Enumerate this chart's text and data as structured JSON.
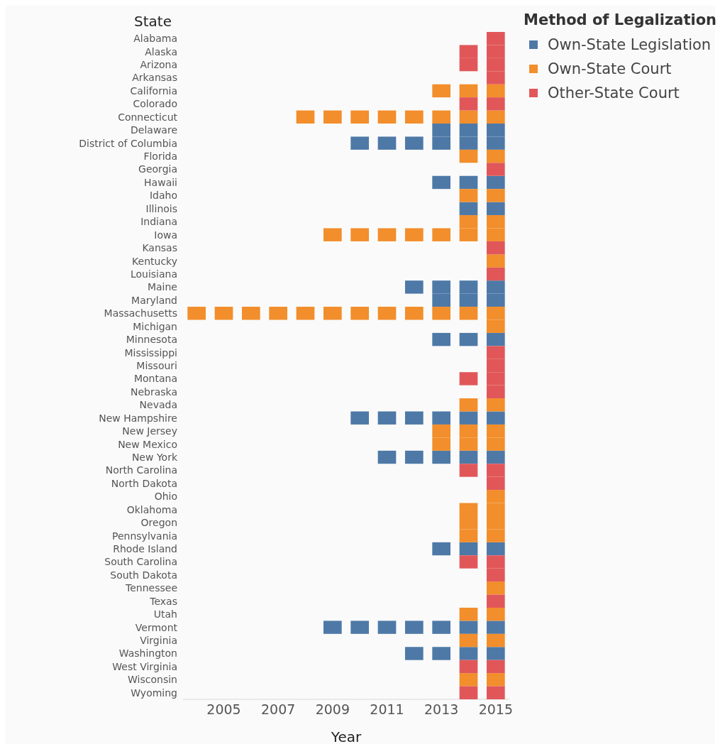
{
  "chart_data": {
    "type": "scatter",
    "orientation": "horizontal",
    "marker": "square",
    "xlabel": "Year",
    "ylabel": "State",
    "legend_title": "Method of Legalization",
    "legend": "top right",
    "grid": false,
    "xlim": [
      2003.5,
      2015.5
    ],
    "xticks": [
      2005,
      2007,
      2009,
      2011,
      2013,
      2015
    ],
    "categories": [
      "Alabama",
      "Alaska",
      "Arizona",
      "Arkansas",
      "California",
      "Colorado",
      "Connecticut",
      "Delaware",
      "District of Columbia",
      "Florida",
      "Georgia",
      "Hawaii",
      "Idaho",
      "Illinois",
      "Indiana",
      "Iowa",
      "Kansas",
      "Kentucky",
      "Louisiana",
      "Maine",
      "Maryland",
      "Massachusetts",
      "Michigan",
      "Minnesota",
      "Mississippi",
      "Missouri",
      "Montana",
      "Nebraska",
      "Nevada",
      "New Hampshire",
      "New Jersey",
      "New Mexico",
      "New York",
      "North Carolina",
      "North Dakota",
      "Ohio",
      "Oklahoma",
      "Oregon",
      "Pennsylvania",
      "Rhode Island",
      "South Carolina",
      "South Dakota",
      "Tennessee",
      "Texas",
      "Utah",
      "Vermont",
      "Virginia",
      "Washington",
      "West Virginia",
      "Wisconsin",
      "Wyoming"
    ],
    "series": [
      {
        "name": "Own-State Legislation",
        "color": "#4e79a7",
        "values": [
          null,
          null,
          null,
          null,
          null,
          null,
          null,
          2015,
          2015,
          null,
          null,
          2015,
          null,
          2015,
          null,
          null,
          null,
          null,
          null,
          2015,
          2015,
          null,
          null,
          2015,
          null,
          null,
          null,
          null,
          null,
          2015,
          null,
          null,
          2015,
          null,
          null,
          null,
          null,
          null,
          null,
          2015,
          null,
          null,
          null,
          null,
          null,
          2015,
          null,
          2015,
          null,
          null,
          null
        ]
      },
      {
        "color": "#4e79a7",
        "values": [
          null,
          null,
          null,
          null,
          null,
          null,
          null,
          2014,
          2014,
          null,
          null,
          2014,
          null,
          2014,
          null,
          null,
          null,
          null,
          null,
          2014,
          2014,
          null,
          null,
          2014,
          null,
          null,
          null,
          null,
          null,
          2014,
          null,
          null,
          2014,
          null,
          null,
          null,
          null,
          null,
          null,
          2014,
          null,
          null,
          null,
          null,
          null,
          2014,
          null,
          2014,
          null,
          null,
          null
        ]
      },
      {
        "color": "#4e79a7",
        "values": [
          null,
          null,
          null,
          null,
          null,
          null,
          null,
          2013,
          2013,
          null,
          null,
          2013,
          null,
          null,
          null,
          null,
          null,
          null,
          null,
          2013,
          2013,
          null,
          null,
          2013,
          null,
          null,
          null,
          null,
          null,
          2013,
          null,
          null,
          2013,
          null,
          null,
          null,
          null,
          null,
          null,
          2013,
          null,
          null,
          null,
          null,
          null,
          2013,
          null,
          2013,
          null,
          null,
          null
        ]
      },
      {
        "color": "#4e79a7",
        "values": [
          null,
          null,
          null,
          null,
          null,
          null,
          null,
          null,
          2012,
          null,
          null,
          null,
          null,
          null,
          null,
          null,
          null,
          null,
          null,
          2012,
          null,
          null,
          null,
          null,
          null,
          null,
          null,
          null,
          null,
          2012,
          null,
          null,
          2012,
          null,
          null,
          null,
          null,
          null,
          null,
          null,
          null,
          null,
          null,
          null,
          null,
          2012,
          null,
          2012,
          null,
          null,
          null
        ]
      },
      {
        "color": "#4e79a7",
        "values": [
          null,
          null,
          null,
          null,
          null,
          null,
          null,
          null,
          2011,
          null,
          null,
          null,
          null,
          null,
          null,
          null,
          null,
          null,
          null,
          null,
          null,
          null,
          null,
          null,
          null,
          null,
          null,
          null,
          null,
          2011,
          null,
          null,
          2011,
          null,
          null,
          null,
          null,
          null,
          null,
          null,
          null,
          null,
          null,
          null,
          null,
          2011,
          null,
          null,
          null,
          null,
          null
        ]
      },
      {
        "color": "#4e79a7",
        "values": [
          null,
          null,
          null,
          null,
          null,
          null,
          null,
          null,
          2010,
          null,
          null,
          null,
          null,
          null,
          null,
          null,
          null,
          null,
          null,
          null,
          null,
          null,
          null,
          null,
          null,
          null,
          null,
          null,
          null,
          2010,
          null,
          null,
          null,
          null,
          null,
          null,
          null,
          null,
          null,
          null,
          null,
          null,
          null,
          null,
          null,
          2010,
          null,
          null,
          null,
          null,
          null
        ]
      },
      {
        "color": "#4e79a7",
        "values": [
          null,
          null,
          null,
          null,
          null,
          null,
          null,
          null,
          null,
          null,
          null,
          null,
          null,
          null,
          null,
          null,
          null,
          null,
          null,
          null,
          null,
          null,
          null,
          null,
          null,
          null,
          null,
          null,
          null,
          null,
          null,
          null,
          null,
          null,
          null,
          null,
          null,
          null,
          null,
          null,
          null,
          null,
          null,
          null,
          null,
          2009,
          null,
          null,
          null,
          null,
          null
        ]
      },
      {
        "name": "Own-State Court",
        "color": "#f28e2b",
        "values": [
          null,
          null,
          null,
          null,
          2015,
          null,
          2015,
          null,
          null,
          2015,
          null,
          null,
          2015,
          null,
          2015,
          2015,
          null,
          2015,
          null,
          null,
          null,
          2015,
          2015,
          null,
          null,
          null,
          null,
          null,
          2015,
          null,
          2015,
          2015,
          null,
          null,
          null,
          2015,
          2015,
          2015,
          2015,
          null,
          null,
          null,
          2015,
          null,
          2015,
          null,
          2015,
          null,
          null,
          2015,
          null
        ]
      },
      {
        "color": "#f28e2b",
        "values": [
          null,
          null,
          null,
          null,
          2014,
          null,
          2014,
          null,
          null,
          2014,
          null,
          null,
          2014,
          null,
          2014,
          2014,
          null,
          null,
          null,
          null,
          null,
          2014,
          null,
          null,
          null,
          null,
          null,
          null,
          2014,
          null,
          2014,
          2014,
          null,
          null,
          null,
          null,
          2014,
          2014,
          2014,
          null,
          null,
          null,
          null,
          null,
          2014,
          null,
          2014,
          null,
          null,
          2014,
          null
        ]
      },
      {
        "color": "#f28e2b",
        "values": [
          null,
          null,
          null,
          null,
          2013,
          null,
          2013,
          null,
          null,
          null,
          null,
          null,
          null,
          null,
          null,
          2013,
          null,
          null,
          null,
          null,
          null,
          2013,
          null,
          null,
          null,
          null,
          null,
          null,
          null,
          null,
          2013,
          2013,
          null,
          null,
          null,
          null,
          null,
          null,
          null,
          null,
          null,
          null,
          null,
          null,
          null,
          null,
          null,
          null,
          null,
          null,
          null
        ]
      },
      {
        "color": "#f28e2b",
        "values": [
          null,
          null,
          null,
          null,
          null,
          null,
          2012,
          null,
          null,
          null,
          null,
          null,
          null,
          null,
          null,
          2012,
          null,
          null,
          null,
          null,
          null,
          2012,
          null,
          null,
          null,
          null,
          null,
          null,
          null,
          null,
          null,
          null,
          null,
          null,
          null,
          null,
          null,
          null,
          null,
          null,
          null,
          null,
          null,
          null,
          null,
          null,
          null,
          null,
          null,
          null,
          null
        ]
      },
      {
        "color": "#f28e2b",
        "values": [
          null,
          null,
          null,
          null,
          null,
          null,
          2011,
          null,
          null,
          null,
          null,
          null,
          null,
          null,
          null,
          2011,
          null,
          null,
          null,
          null,
          null,
          2011,
          null,
          null,
          null,
          null,
          null,
          null,
          null,
          null,
          null,
          null,
          null,
          null,
          null,
          null,
          null,
          null,
          null,
          null,
          null,
          null,
          null,
          null,
          null,
          null,
          null,
          null,
          null,
          null,
          null
        ]
      },
      {
        "color": "#f28e2b",
        "values": [
          null,
          null,
          null,
          null,
          null,
          null,
          2010,
          null,
          null,
          null,
          null,
          null,
          null,
          null,
          null,
          2010,
          null,
          null,
          null,
          null,
          null,
          2010,
          null,
          null,
          null,
          null,
          null,
          null,
          null,
          null,
          null,
          null,
          null,
          null,
          null,
          null,
          null,
          null,
          null,
          null,
          null,
          null,
          null,
          null,
          null,
          null,
          null,
          null,
          null,
          null,
          null
        ]
      },
      {
        "color": "#f28e2b",
        "values": [
          null,
          null,
          null,
          null,
          null,
          null,
          2009,
          null,
          null,
          null,
          null,
          null,
          null,
          null,
          null,
          2009,
          null,
          null,
          null,
          null,
          null,
          2009,
          null,
          null,
          null,
          null,
          null,
          null,
          null,
          null,
          null,
          null,
          null,
          null,
          null,
          null,
          null,
          null,
          null,
          null,
          null,
          null,
          null,
          null,
          null,
          null,
          null,
          null,
          null,
          null,
          null
        ]
      },
      {
        "color": "#f28e2b",
        "values": [
          null,
          null,
          null,
          null,
          null,
          null,
          2008,
          null,
          null,
          null,
          null,
          null,
          null,
          null,
          null,
          null,
          null,
          null,
          null,
          null,
          null,
          2008,
          null,
          null,
          null,
          null,
          null,
          null,
          null,
          null,
          null,
          null,
          null,
          null,
          null,
          null,
          null,
          null,
          null,
          null,
          null,
          null,
          null,
          null,
          null,
          null,
          null,
          null,
          null,
          null,
          null
        ]
      },
      {
        "color": "#f28e2b",
        "values": [
          null,
          null,
          null,
          null,
          null,
          null,
          null,
          null,
          null,
          null,
          null,
          null,
          null,
          null,
          null,
          null,
          null,
          null,
          null,
          null,
          null,
          2007,
          null,
          null,
          null,
          null,
          null,
          null,
          null,
          null,
          null,
          null,
          null,
          null,
          null,
          null,
          null,
          null,
          null,
          null,
          null,
          null,
          null,
          null,
          null,
          null,
          null,
          null,
          null,
          null,
          null
        ]
      },
      {
        "color": "#f28e2b",
        "values": [
          null,
          null,
          null,
          null,
          null,
          null,
          null,
          null,
          null,
          null,
          null,
          null,
          null,
          null,
          null,
          null,
          null,
          null,
          null,
          null,
          null,
          2006,
          null,
          null,
          null,
          null,
          null,
          null,
          null,
          null,
          null,
          null,
          null,
          null,
          null,
          null,
          null,
          null,
          null,
          null,
          null,
          null,
          null,
          null,
          null,
          null,
          null,
          null,
          null,
          null,
          null
        ]
      },
      {
        "color": "#f28e2b",
        "values": [
          null,
          null,
          null,
          null,
          null,
          null,
          null,
          null,
          null,
          null,
          null,
          null,
          null,
          null,
          null,
          null,
          null,
          null,
          null,
          null,
          null,
          2005,
          null,
          null,
          null,
          null,
          null,
          null,
          null,
          null,
          null,
          null,
          null,
          null,
          null,
          null,
          null,
          null,
          null,
          null,
          null,
          null,
          null,
          null,
          null,
          null,
          null,
          null,
          null,
          null,
          null
        ]
      },
      {
        "color": "#f28e2b",
        "values": [
          null,
          null,
          null,
          null,
          null,
          null,
          null,
          null,
          null,
          null,
          null,
          null,
          null,
          null,
          null,
          null,
          null,
          null,
          null,
          null,
          null,
          2004,
          null,
          null,
          null,
          null,
          null,
          null,
          null,
          null,
          null,
          null,
          null,
          null,
          null,
          null,
          null,
          null,
          null,
          null,
          null,
          null,
          null,
          null,
          null,
          null,
          null,
          null,
          null,
          null,
          null
        ]
      },
      {
        "name": "Other-State Court",
        "color": "#e15759",
        "values": [
          2015,
          2015,
          2015,
          2015,
          null,
          2015,
          null,
          null,
          null,
          null,
          2015,
          null,
          null,
          null,
          null,
          null,
          2015,
          null,
          2015,
          null,
          null,
          null,
          null,
          null,
          2015,
          2015,
          2015,
          2015,
          null,
          null,
          null,
          null,
          null,
          2015,
          2015,
          null,
          null,
          null,
          null,
          null,
          2015,
          2015,
          null,
          2015,
          null,
          null,
          null,
          null,
          2015,
          null,
          2015
        ]
      },
      {
        "color": "#e15759",
        "values": [
          null,
          2014,
          2014,
          null,
          null,
          2014,
          null,
          null,
          null,
          null,
          null,
          null,
          null,
          null,
          null,
          null,
          null,
          null,
          null,
          null,
          null,
          null,
          null,
          null,
          null,
          null,
          2014,
          null,
          null,
          null,
          null,
          null,
          null,
          2014,
          null,
          null,
          null,
          null,
          null,
          null,
          2014,
          null,
          null,
          null,
          null,
          null,
          null,
          null,
          2014,
          null,
          2014
        ]
      }
    ]
  }
}
